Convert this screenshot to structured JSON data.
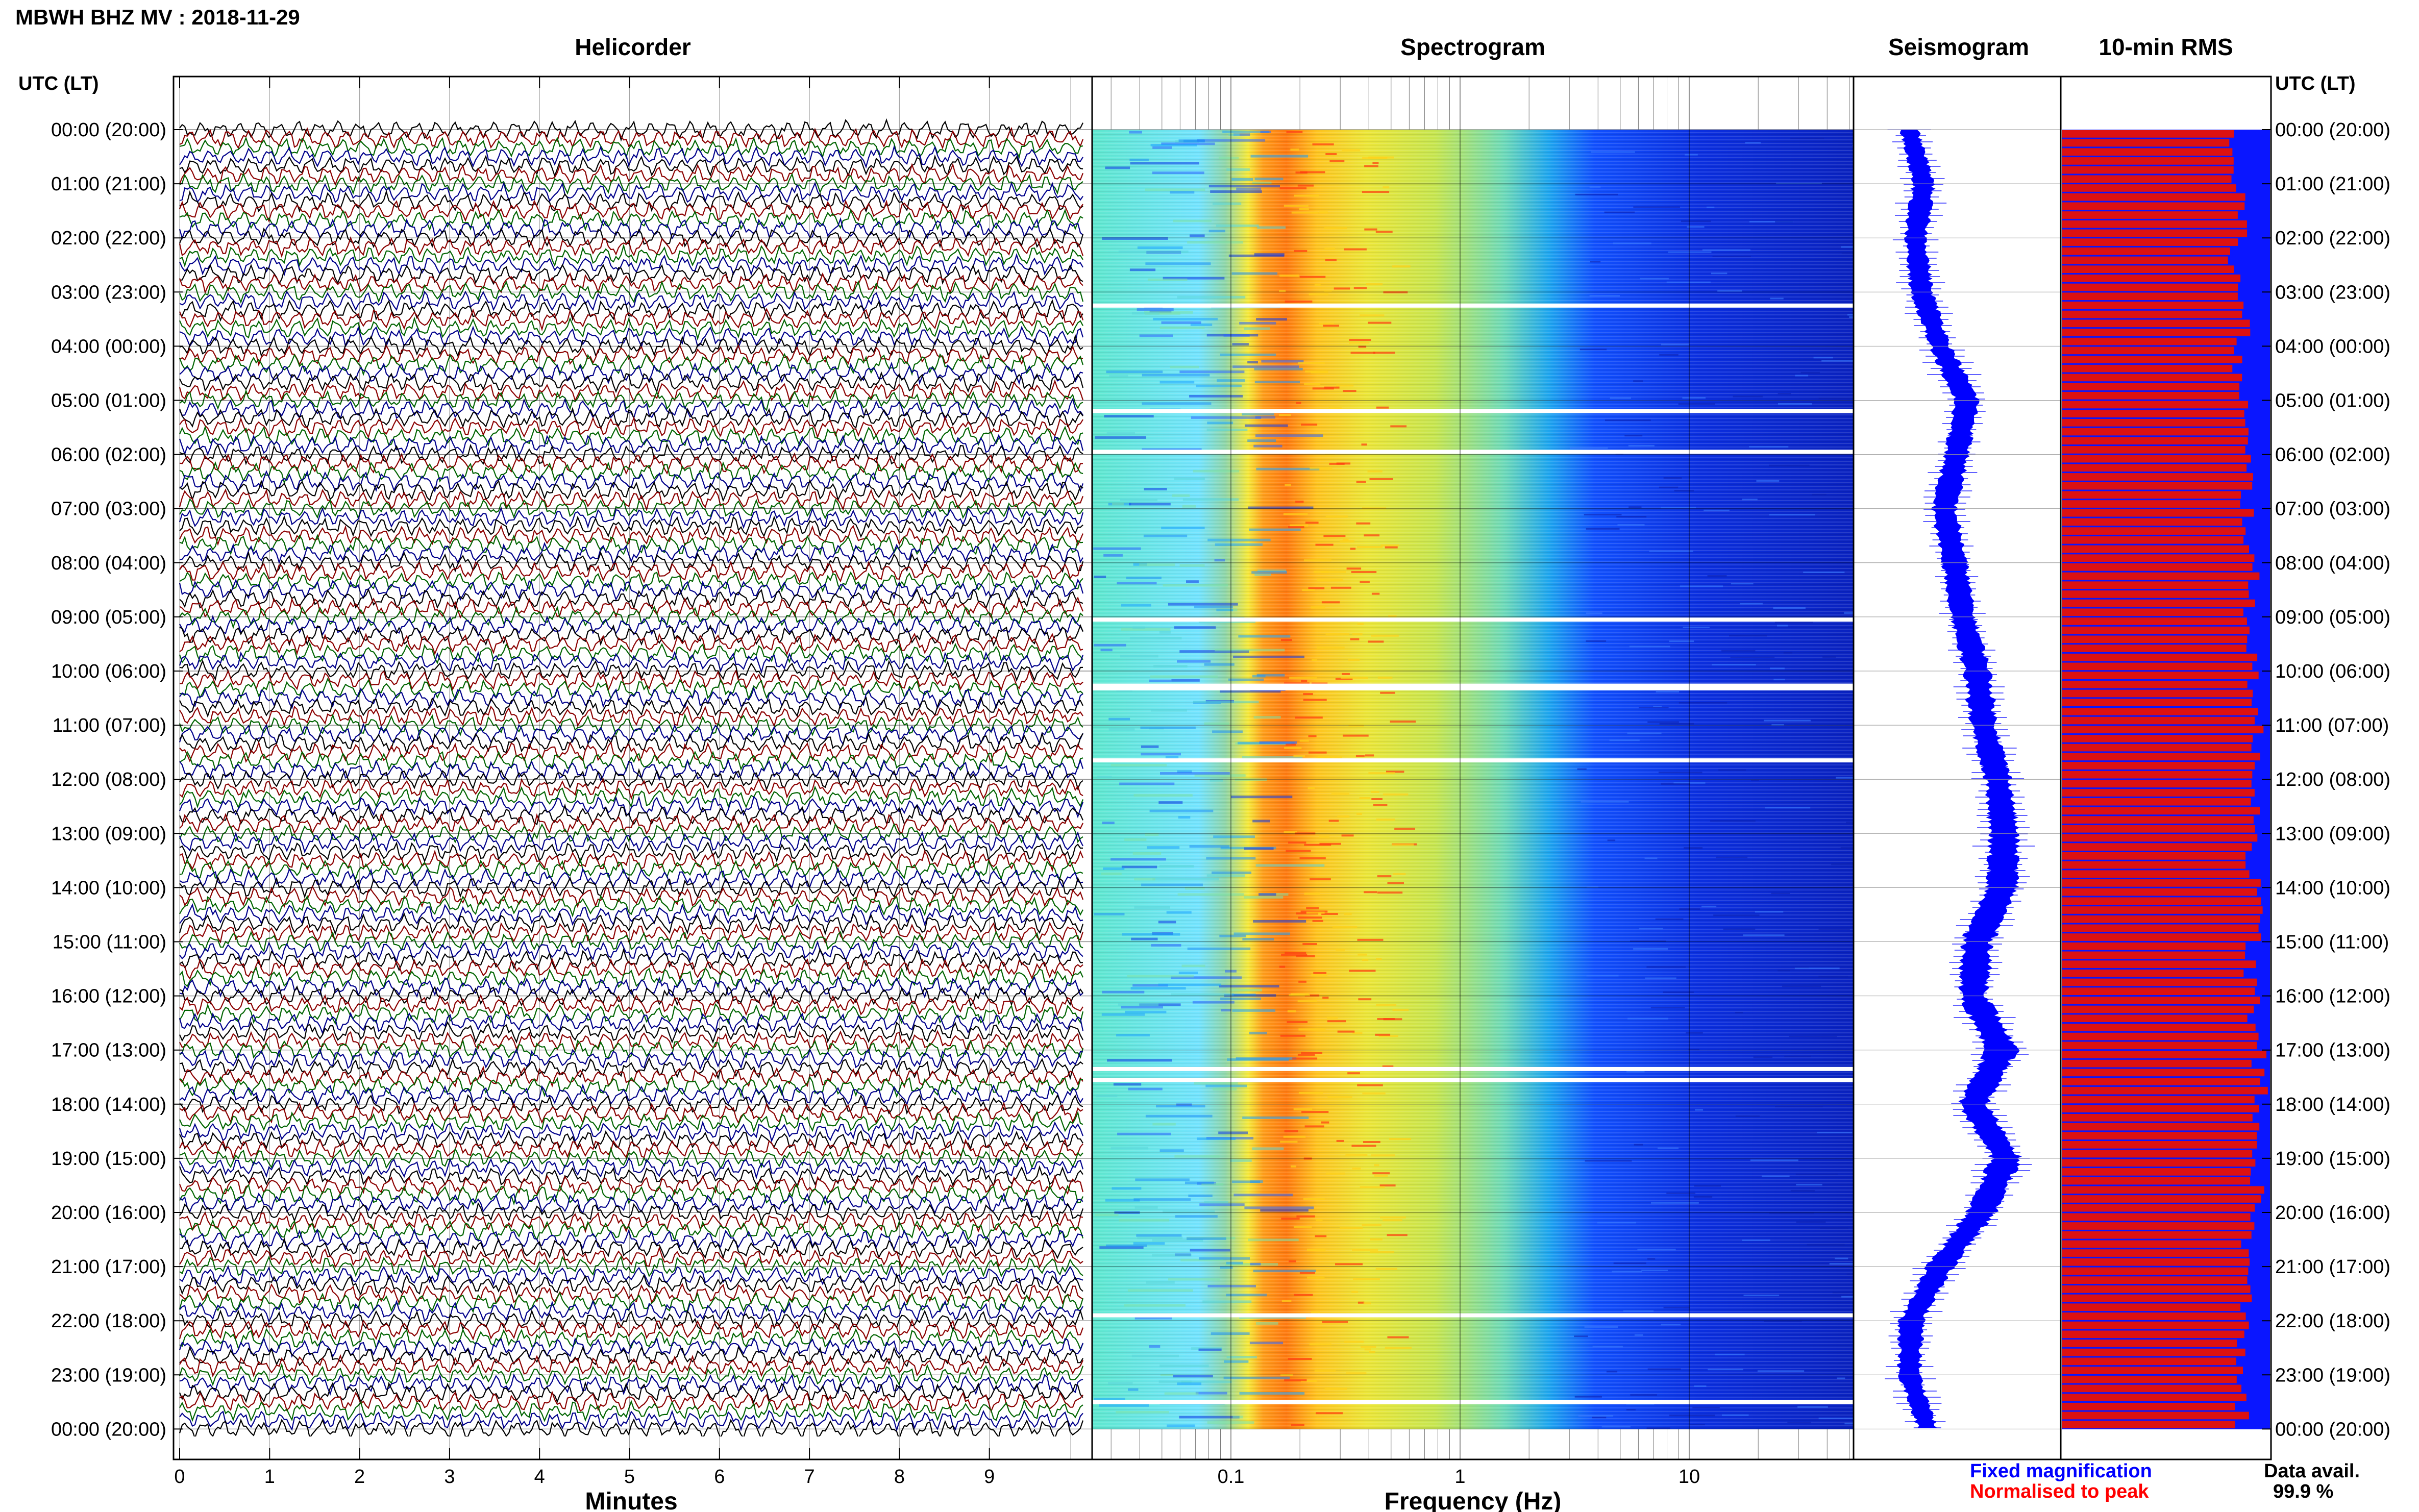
{
  "header": {
    "title": "MBWH BHZ MV : 2018-11-29",
    "utc_label_left": "UTC (LT)",
    "utc_label_right": "UTC (LT)"
  },
  "panels": {
    "helicorder": "Helicorder",
    "spectrogram": "Spectrogram",
    "seismogram": "Seismogram",
    "rms": "10-min RMS"
  },
  "axes": {
    "helicorder_xlabel": "Minutes",
    "helicorder_ticks": [
      "0",
      "1",
      "2",
      "3",
      "4",
      "5",
      "6",
      "7",
      "8",
      "9"
    ],
    "spectrogram_xlabel": "Frequency (Hz)",
    "spectrogram_ticks": [
      "0.1",
      "1",
      "10"
    ]
  },
  "time_labels": [
    "00:00 (20:00)",
    "01:00 (21:00)",
    "02:00 (22:00)",
    "03:00 (23:00)",
    "04:00 (00:00)",
    "05:00 (01:00)",
    "06:00 (02:00)",
    "07:00 (03:00)",
    "08:00 (04:00)",
    "09:00 (05:00)",
    "10:00 (06:00)",
    "11:00 (07:00)",
    "12:00 (08:00)",
    "13:00 (09:00)",
    "14:00 (10:00)",
    "15:00 (11:00)",
    "16:00 (12:00)",
    "17:00 (13:00)",
    "18:00 (14:00)",
    "19:00 (15:00)",
    "20:00 (16:00)",
    "21:00 (17:00)",
    "22:00 (18:00)",
    "23:00 (19:00)",
    "00:00 (20:00)"
  ],
  "legend": {
    "fixed": "Fixed magnification",
    "normalised": "Normalised to peak",
    "fixed_color": "#0000ff",
    "normalised_color": "#ff0000"
  },
  "data_avail": {
    "label": "Data avail.",
    "value": "99.9 %"
  },
  "colors": {
    "trace_cycle": [
      "#000000",
      "#8b0000",
      "#006400",
      "#00008b"
    ],
    "seismogram": "#0000ff",
    "rms_fixed": "#0000ff",
    "rms_normalised": "#dd1111"
  },
  "chart_data": [
    {
      "type": "line",
      "name": "helicorder",
      "title": "Helicorder",
      "xlabel": "Minutes",
      "xlim": [
        0,
        10
      ],
      "rows_per_hour": 6,
      "hours": 24,
      "row_minutes": 10,
      "trace_colors_cycle": [
        "black",
        "darkred",
        "green",
        "darkblue"
      ]
    },
    {
      "type": "heatmap",
      "name": "spectrogram",
      "title": "Spectrogram",
      "xlabel": "Frequency (Hz)",
      "xscale": "log",
      "xlim": [
        0.02,
        50
      ],
      "xticks": [
        0.1,
        1,
        10
      ],
      "peak_frequency_hz": 0.22,
      "data_gap_hours": [
        3.25,
        5.2,
        5.95,
        9.05,
        10.27,
        10.32,
        11.65,
        17.35,
        17.55,
        21.9,
        23.5
      ]
    },
    {
      "type": "line",
      "name": "seismogram",
      "title": "Seismogram",
      "hours": [
        0,
        1,
        2,
        3,
        4,
        5,
        6,
        7,
        8,
        9,
        10,
        11,
        12,
        13,
        14,
        15,
        16,
        17,
        18,
        19,
        20,
        21,
        22,
        23,
        24
      ],
      "offset": [
        0.27,
        0.34,
        0.3,
        0.33,
        0.42,
        0.55,
        0.5,
        0.44,
        0.49,
        0.53,
        0.6,
        0.63,
        0.7,
        0.73,
        0.72,
        0.6,
        0.58,
        0.72,
        0.58,
        0.74,
        0.62,
        0.42,
        0.28,
        0.27,
        0.36
      ],
      "amplitude": [
        0.08,
        0.1,
        0.1,
        0.1,
        0.1,
        0.11,
        0.11,
        0.11,
        0.11,
        0.11,
        0.12,
        0.12,
        0.12,
        0.13,
        0.14,
        0.14,
        0.13,
        0.14,
        0.13,
        0.14,
        0.13,
        0.12,
        0.11,
        0.1,
        0.09
      ]
    },
    {
      "type": "bar",
      "name": "10-min RMS",
      "title": "10-min RMS",
      "orientation": "horizontal",
      "bars": 144,
      "series": [
        {
          "name": "Fixed magnification",
          "values": [
            0.86,
            0.87,
            0.85,
            0.88,
            0.86,
            0.87,
            0.89,
            0.9,
            0.91,
            0.91,
            0.93,
            0.93,
            0.94,
            0.92,
            0.93,
            0.91,
            0.92,
            0.95,
            0.93,
            0.94,
            0.9,
            0.88,
            0.87,
            0.86
          ]
        },
        {
          "name": "Normalised to peak",
          "values": [
            0.84,
            0.86,
            0.83,
            0.87,
            0.85,
            0.87,
            0.89,
            0.9,
            0.91,
            0.91,
            0.93,
            0.93,
            0.94,
            0.92,
            0.93,
            0.91,
            0.92,
            0.95,
            0.93,
            0.94,
            0.9,
            0.88,
            0.87,
            0.86
          ]
        }
      ]
    }
  ]
}
